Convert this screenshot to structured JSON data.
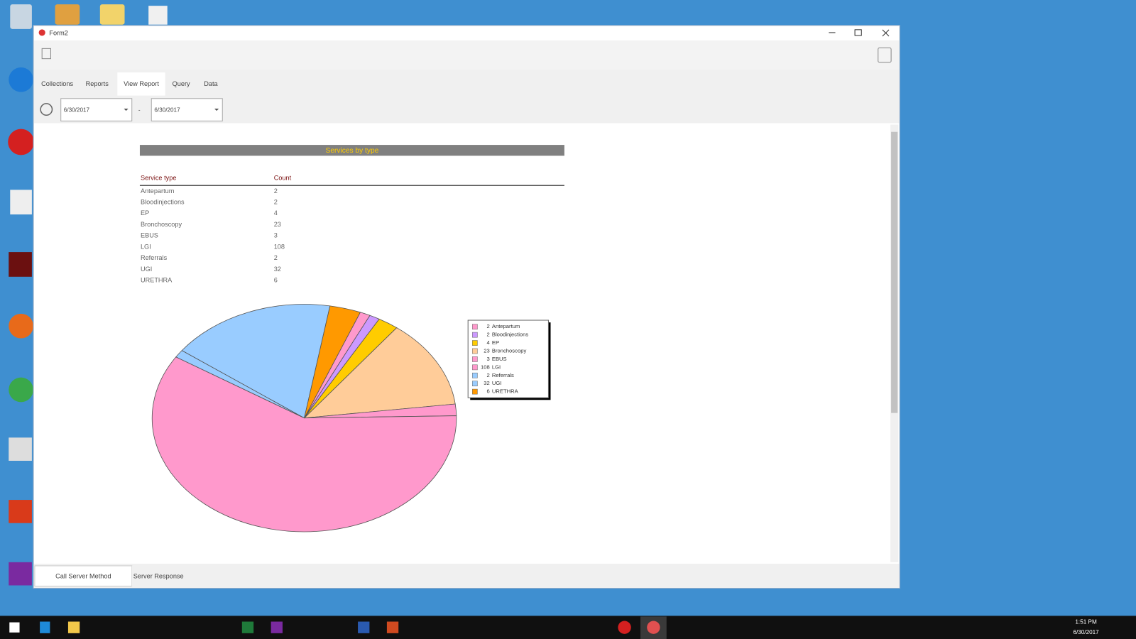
{
  "window": {
    "title": "Form2"
  },
  "tabs": [
    "Collections",
    "Reports",
    "View Report",
    "Query",
    "Data"
  ],
  "date_range": {
    "from": "6/30/2017",
    "separator": "-",
    "to": "6/30/2017"
  },
  "chart_data": {
    "type": "pie",
    "title": "Services by type",
    "table_headers": [
      "Service type",
      "Count"
    ],
    "categories": [
      "Antepartum",
      "Bloodinjections",
      "EP",
      "Bronchoscopy",
      "EBUS",
      "LGI",
      "Referrals",
      "UGI",
      "URETHRA"
    ],
    "values": [
      2,
      2,
      4,
      23,
      3,
      108,
      2,
      32,
      6
    ],
    "colors": [
      "#ff99cc",
      "#cc99ff",
      "#ffcc00",
      "#ffcc99",
      "#ff99cc",
      "#ff99cc",
      "#99ccff",
      "#99ccff",
      "#ff9900"
    ]
  },
  "bottom_tabs": [
    "Call Server Method",
    "Server Response"
  ],
  "taskbar": {
    "time": "1:51 PM",
    "date": "6/30/2017"
  }
}
